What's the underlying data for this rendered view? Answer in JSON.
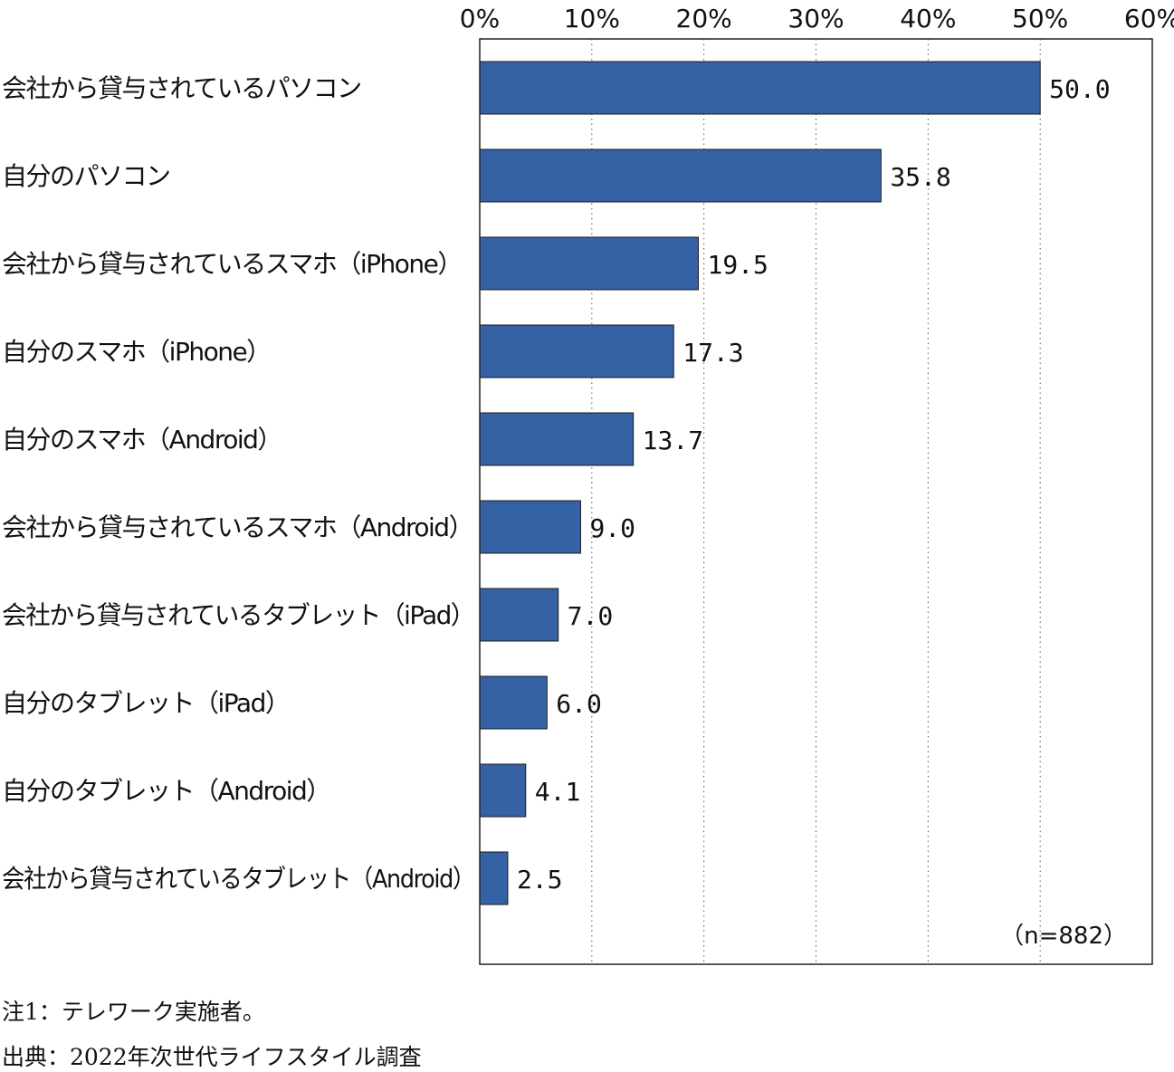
{
  "chart_data": {
    "type": "bar",
    "orientation": "horizontal",
    "categories": [
      "会社から貸与されているパソコン",
      "自分のパソコン",
      "会社から貸与されているスマホ（iPhone）",
      "自分のスマホ（iPhone）",
      "自分のスマホ（Android）",
      "会社から貸与されているスマホ（Android）",
      "会社から貸与されているタブレット（iPad）",
      "自分のタブレット（iPad）",
      "自分のタブレット（Android）",
      "会社から貸与されているタブレット（Android）"
    ],
    "values": [
      50.0,
      35.8,
      19.5,
      17.3,
      13.7,
      9.0,
      7.0,
      6.0,
      4.1,
      2.5
    ],
    "value_labels": [
      "50.0",
      "35.8",
      "19.5",
      "17.3",
      "13.7",
      "9.0",
      "7.0",
      "6.0",
      "4.1",
      "2.5"
    ],
    "xlim": [
      0,
      60
    ],
    "ticks": [
      0,
      10,
      20,
      30,
      40,
      50,
      60
    ],
    "tick_labels": [
      "0%",
      "10%",
      "20%",
      "30%",
      "40%",
      "50%",
      "60%"
    ],
    "axis_position": "top",
    "grid": "dotted vertical",
    "bar_color": "#3562a4",
    "sample_note": "（n=882）"
  },
  "footnotes": {
    "note1": "注1：テレワーク実施者。",
    "source": "出典：2022年次世代ライフスタイル調査"
  }
}
